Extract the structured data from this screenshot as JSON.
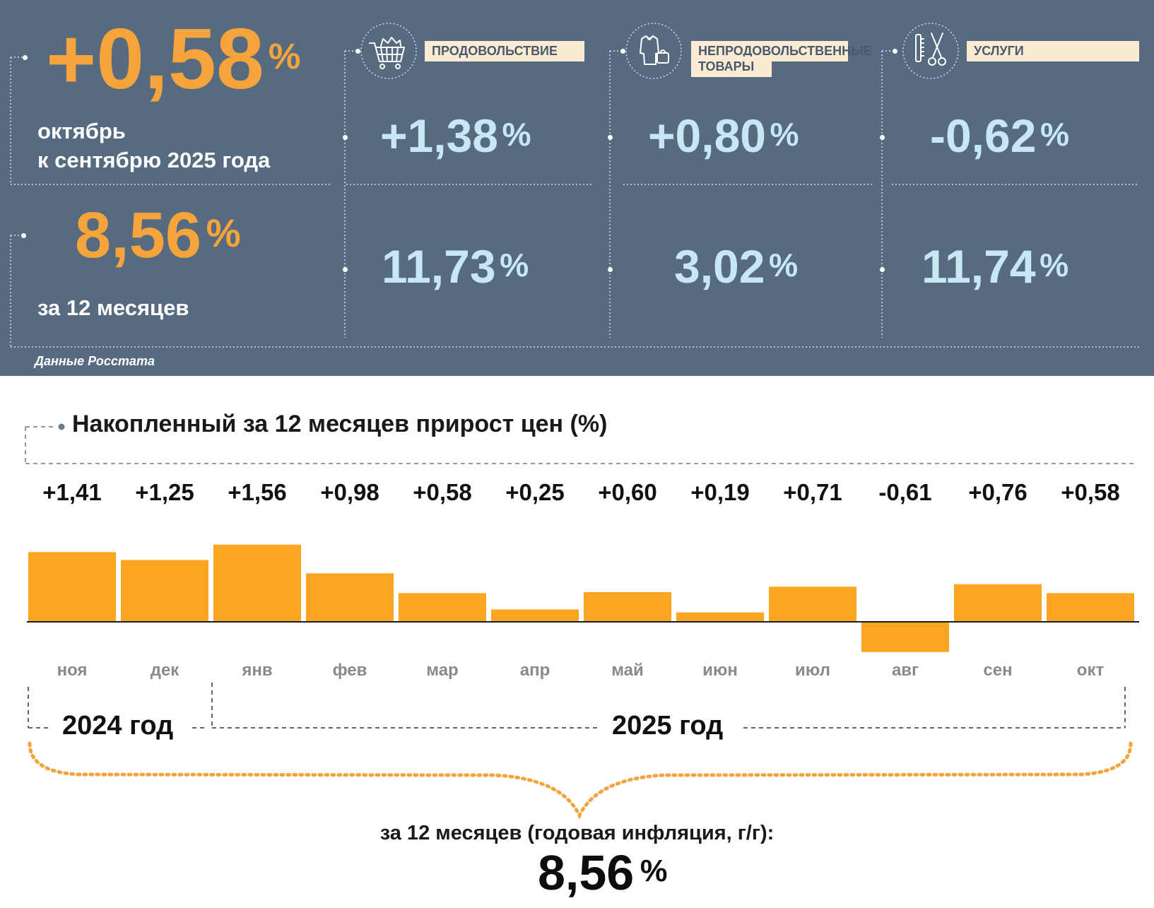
{
  "header": {
    "month_value": "+0,58",
    "month_caption_line1": "октябрь",
    "month_caption_line2": "к сентябрю 2025 года",
    "year_value": "8,56",
    "year_caption": "за 12 месяцев",
    "percent_sign": "%",
    "source": "Данные Росстата"
  },
  "categories": [
    {
      "name": "ПРОДОВОЛЬСТВИЕ",
      "icon": "shopping-cart-icon",
      "monthly": "+1,38",
      "annual": "11,73"
    },
    {
      "name_line1": "НЕПРОДОВОЛЬСТВЕННЫЕ",
      "name_line2": "ТОВАРЫ",
      "icon": "clothing-icon",
      "monthly": "+0,80",
      "annual": "3,02"
    },
    {
      "name": "УСЛУГИ",
      "icon": "scissors-comb-icon",
      "monthly": "-0,62",
      "annual": "11,74"
    }
  ],
  "chart_data": {
    "type": "bar",
    "title": "Накопленный за 12 месяцев прирост цен (%)",
    "categories": [
      "ноя",
      "дек",
      "янв",
      "фев",
      "мар",
      "апр",
      "май",
      "июн",
      "июл",
      "авг",
      "сен",
      "окт"
    ],
    "values": [
      1.41,
      1.25,
      1.56,
      0.98,
      0.58,
      0.25,
      0.6,
      0.19,
      0.71,
      -0.61,
      0.76,
      0.58
    ],
    "value_labels": [
      "+1,41",
      "+1,25",
      "+1,56",
      "+0,98",
      "+0,58",
      "+0,25",
      "+0,60",
      "+0,19",
      "+0,71",
      "-0,61",
      "+0,76",
      "+0,58"
    ],
    "year_labels": [
      "2024 год",
      "2025 год"
    ],
    "summary_caption": "за 12 месяцев (годовая инфляция, г/г):",
    "summary_value": "8,56",
    "summary_unit": "%",
    "bar_color": "#fba522"
  },
  "colors": {
    "panel": "#566a80",
    "orange": "#f4a43a",
    "light_blue": "#c7e7f5",
    "category_box": "#fbebd3"
  }
}
